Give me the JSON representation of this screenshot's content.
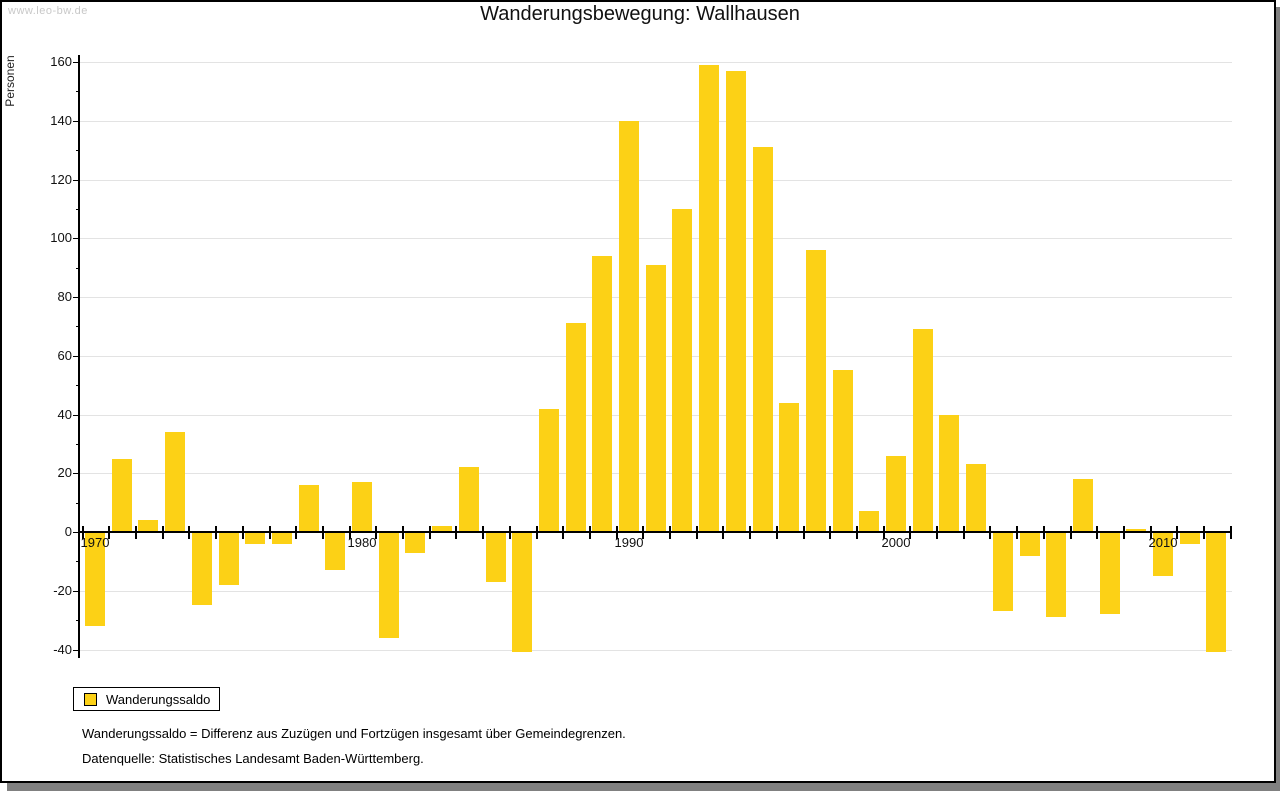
{
  "watermark": "www.leo-bw.de",
  "title": "Wanderungsbewegung: Wallhausen",
  "legend": {
    "label": "Wanderungssaldo"
  },
  "footnotes": {
    "definition": "Wanderungssaldo = Differenz aus Zuzügen und Fortzügen insgesamt über Gemeindegrenzen.",
    "source": "Datenquelle: Statistisches Landesamt Baden-Württemberg."
  },
  "colors": {
    "bar": "#FCD116",
    "grid": "#e3e3e3",
    "axis": "#000000",
    "text": "#111111",
    "watermark": "#c8c8c8",
    "shadow": "#808080"
  },
  "chart_data": {
    "type": "bar",
    "title": "Wanderungsbewegung: Wallhausen",
    "ylabel": "Personen",
    "series_name": "Wanderungssaldo",
    "x": [
      1970,
      1971,
      1972,
      1973,
      1974,
      1975,
      1976,
      1977,
      1978,
      1979,
      1980,
      1981,
      1982,
      1983,
      1984,
      1985,
      1986,
      1987,
      1988,
      1989,
      1990,
      1991,
      1992,
      1993,
      1994,
      1995,
      1996,
      1997,
      1998,
      1999,
      2000,
      2001,
      2002,
      2003,
      2004,
      2005,
      2006,
      2007,
      2008,
      2009,
      2010,
      2011,
      2012
    ],
    "values": [
      -32,
      25,
      4,
      34,
      -25,
      -18,
      -4,
      -4,
      16,
      -13,
      17,
      -36,
      -7,
      2,
      22,
      -17,
      -41,
      42,
      71,
      94,
      140,
      91,
      110,
      159,
      157,
      131,
      44,
      96,
      55,
      7,
      26,
      69,
      40,
      23,
      -27,
      -8,
      -29,
      18,
      -28,
      1,
      -15,
      -4,
      -41
    ],
    "ylim": [
      -40,
      160
    ],
    "ytick_step": 20,
    "ytick_minor_step": 10,
    "xtick_labels": [
      "1970",
      "1980",
      "1990",
      "2000",
      "2010"
    ],
    "grid": "horizontal",
    "legend_position": "bottom-left"
  }
}
